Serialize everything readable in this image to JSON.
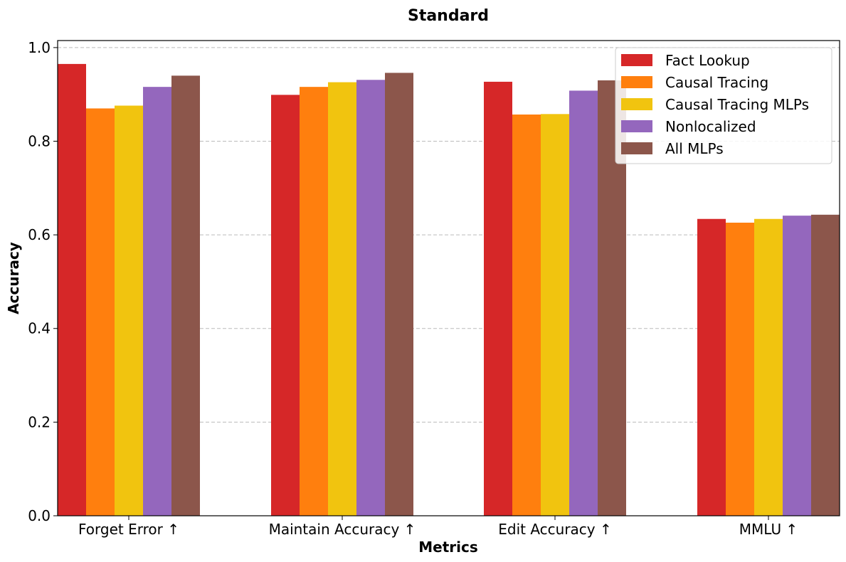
{
  "chart_data": {
    "type": "bar",
    "title": "Standard",
    "xlabel": "Metrics",
    "ylabel": "Accuracy",
    "ylim": [
      0,
      1.0
    ],
    "yticks": [
      "0.0",
      "0.2",
      "0.4",
      "0.6",
      "0.8",
      "1.0"
    ],
    "categories": [
      "Forget Error ↑",
      "Maintain Accuracy ↑",
      "Edit Accuracy ↑",
      "MMLU ↑"
    ],
    "series": [
      {
        "name": "Fact Lookup",
        "color": "#d62728",
        "values": [
          0.965,
          0.899,
          0.927,
          0.634
        ]
      },
      {
        "name": "Causal Tracing",
        "color": "#ff7f0e",
        "values": [
          0.87,
          0.916,
          0.857,
          0.626
        ]
      },
      {
        "name": "Causal Tracing MLPs",
        "color": "#f1c40f",
        "values": [
          0.876,
          0.926,
          0.858,
          0.634
        ]
      },
      {
        "name": "Nonlocalized",
        "color": "#9467bd",
        "values": [
          0.916,
          0.931,
          0.908,
          0.641
        ]
      },
      {
        "name": "All MLPs",
        "color": "#8c564b",
        "values": [
          0.94,
          0.946,
          0.93,
          0.643
        ]
      }
    ],
    "grid": "horizontal dashed",
    "legend_position": "top-right"
  }
}
